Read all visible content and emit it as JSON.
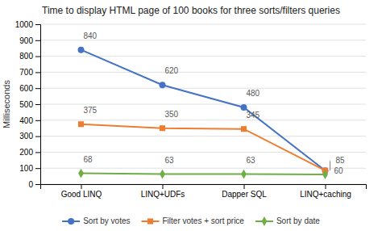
{
  "chart_data": {
    "type": "line",
    "title": "Time to display HTML page of 100 books for three sorts/filters queries",
    "categories": [
      "Good LINQ",
      "LINQ+UDFs",
      "Dapper SQL",
      "LINQ+caching"
    ],
    "series": [
      {
        "name": "Sort by votes",
        "color": "#4472C4",
        "marker": "circle",
        "values": [
          840,
          620,
          480,
          85
        ]
      },
      {
        "name": "Filter votes + sort price",
        "color": "#ED7D31",
        "marker": "square",
        "values": [
          375,
          350,
          345,
          85
        ]
      },
      {
        "name": "Sort by date",
        "color": "#70AD47",
        "marker": "diamond",
        "values": [
          68,
          63,
          63,
          60
        ]
      }
    ],
    "ylabel": "Milliseconds",
    "ylim": [
      0,
      1000
    ],
    "yticks": [
      0,
      100,
      200,
      300,
      400,
      500,
      600,
      700,
      800,
      900,
      1000
    ],
    "grid": true,
    "legend": "bottom",
    "annotations": [
      {
        "text": "840",
        "x": "Good LINQ",
        "y": 840
      },
      {
        "text": "620",
        "x": "LINQ+UDFs",
        "y": 620
      },
      {
        "text": "480",
        "x": "Dapper SQL",
        "y": 480
      },
      {
        "text": "375",
        "x": "Good LINQ",
        "y": 375
      },
      {
        "text": "350",
        "x": "LINQ+UDFs",
        "y": 350
      },
      {
        "text": "345",
        "x": "Dapper SQL",
        "y": 345
      },
      {
        "text": "68",
        "x": "Good LINQ",
        "y": 68
      },
      {
        "text": "63",
        "x": "LINQ+UDFs",
        "y": 63
      },
      {
        "text": "63",
        "x": "Dapper SQL",
        "y": 63
      },
      {
        "text": "60",
        "x": "LINQ+caching",
        "y": 60
      },
      {
        "text": "85",
        "x": "LINQ+caching",
        "y": 145,
        "y_from": 85
      }
    ]
  }
}
